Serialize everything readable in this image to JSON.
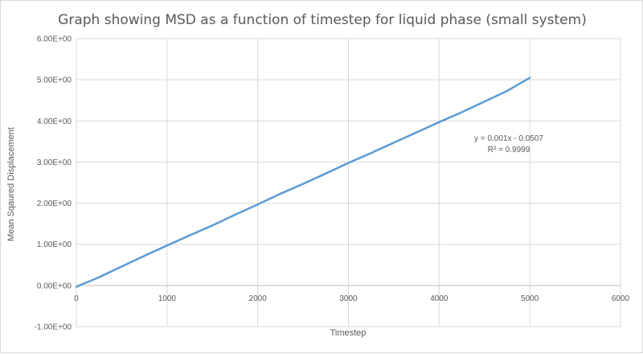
{
  "chart_data": {
    "type": "line",
    "title": "Graph showing MSD as a function of timestep for liquid phase (small system)",
    "xlabel": "Timestep",
    "ylabel": "Mean Sqaured Displacement",
    "xlim": [
      0,
      6000
    ],
    "ylim": [
      -1.0,
      6.0
    ],
    "x_ticks": [
      0,
      1000,
      2000,
      3000,
      4000,
      5000,
      6000
    ],
    "x_tick_labels": [
      "0",
      "1000",
      "2000",
      "3000",
      "4000",
      "5000",
      "6000"
    ],
    "y_ticks": [
      6.0,
      5.0,
      4.0,
      3.0,
      2.0,
      1.0,
      0.0,
      -1.0
    ],
    "y_tick_labels": [
      "6.00E+00",
      "5.00E+00",
      "4.00E+00",
      "3.00E+00",
      "2.00E+00",
      "1.00E+00",
      "0.00E+00",
      "-1.00E+00"
    ],
    "grid": true,
    "legend": "none",
    "series_color": "#5b9bd5",
    "series": [
      {
        "x": [
          0,
          250,
          500,
          750,
          1000,
          1250,
          1500,
          1750,
          2000,
          2250,
          2500,
          2750,
          3000,
          3250,
          3500,
          3750,
          4000,
          4250,
          4500,
          4750,
          5000
        ],
        "values": [
          -0.03,
          0.2,
          0.46,
          0.72,
          0.97,
          1.22,
          1.46,
          1.72,
          1.97,
          2.23,
          2.47,
          2.72,
          2.98,
          3.22,
          3.47,
          3.72,
          3.97,
          4.21,
          4.47,
          4.73,
          5.05
        ]
      }
    ],
    "annotations": [
      "y = 0.001x - 0.0507",
      "R² = 0.9999"
    ]
  }
}
